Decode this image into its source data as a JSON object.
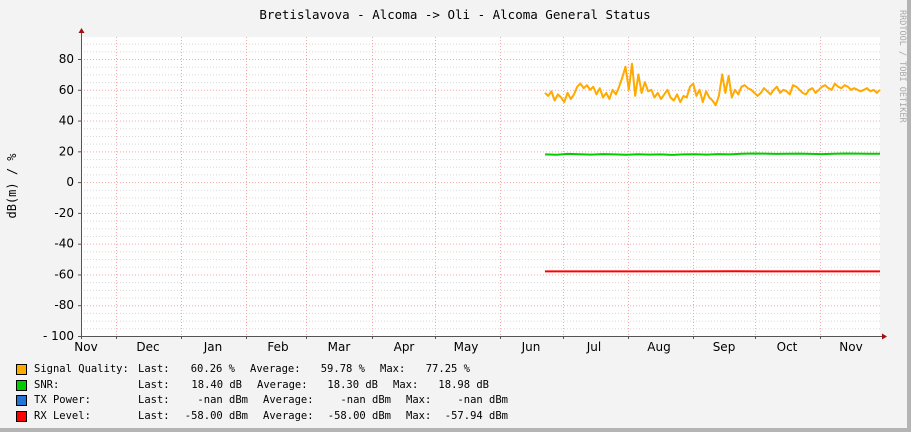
{
  "chart_data": {
    "type": "line",
    "title": "Bretislavova - Alcoma -> Oli - Alcoma General Status",
    "ylabel": "dB(m) / %",
    "xlabel": "",
    "watermark": "RRDTOOL / TOBI OETIKER",
    "ylim": [
      -100,
      95
    ],
    "yticks": [
      80,
      60,
      40,
      20,
      0,
      -20,
      -40,
      -60,
      -80,
      -100
    ],
    "ytick_labels": [
      "80",
      "60",
      "40",
      "20",
      "0",
      "-20",
      "-40",
      "-60",
      "-80",
      "- 100"
    ],
    "y_minor_step": 5,
    "xtick_labels": [
      "Nov",
      "Dec",
      "Jan",
      "Feb",
      "Mar",
      "Apr",
      "May",
      "Jun",
      "Jul",
      "Aug",
      "Sep",
      "Oct",
      "Nov"
    ],
    "grid": true,
    "x_data_start": "Jun 10",
    "x_data_end": "Nov 16",
    "series": [
      {
        "name": "Signal Quality",
        "color": "#ffaa00",
        "values": [
          58,
          56,
          59,
          53,
          57,
          55,
          52,
          58,
          54,
          57,
          62,
          64,
          61,
          63,
          60,
          62,
          57,
          61,
          55,
          58,
          54,
          60,
          57,
          62,
          68,
          75,
          60,
          77,
          56,
          70,
          58,
          65,
          59,
          60,
          55,
          58,
          54,
          57,
          60,
          55,
          53,
          57,
          52,
          56,
          55,
          62,
          64,
          56,
          60,
          52,
          59,
          55,
          53,
          50,
          56,
          70,
          58,
          69,
          55,
          60,
          57,
          62,
          63,
          61,
          60,
          58,
          56,
          58,
          61,
          59,
          57,
          60,
          62,
          58,
          60,
          59,
          57,
          63,
          62,
          60,
          58,
          57,
          60,
          61,
          58,
          60,
          62,
          63,
          61,
          60,
          64,
          62,
          61,
          63,
          62,
          60,
          61,
          60,
          59,
          60,
          61,
          59,
          60,
          58,
          60
        ]
      },
      {
        "name": "SNR",
        "color": "#00cc00",
        "values": [
          18.0,
          17.8,
          18.3,
          18.1,
          17.9,
          18.2,
          18.0,
          17.8,
          18.1,
          17.9,
          18.0,
          17.7,
          18.0,
          18.1,
          17.9,
          18.2,
          18.0,
          18.4,
          18.6,
          18.5,
          18.3,
          18.4,
          18.5,
          18.3,
          18.2,
          18.4,
          18.6,
          18.5,
          18.4,
          18.4
        ]
      },
      {
        "name": "TX Power",
        "color": "#2274d6",
        "values": []
      },
      {
        "name": "RX Level",
        "color": "#ff0000",
        "values": [
          -58,
          -58,
          -58,
          -58,
          -57.94,
          -58,
          -58,
          -58
        ]
      }
    ]
  },
  "legend": [
    {
      "label": "Signal Quality:",
      "color": "#ffaa00",
      "last_label": "Last:",
      "last": "60.26 %",
      "avg_label": "Average:",
      "avg": "59.78 %",
      "max_label": "Max:",
      "max": "77.25 %"
    },
    {
      "label": "SNR:",
      "color": "#00cc00",
      "last_label": "Last:",
      "last": "18.40 dB",
      "avg_label": "Average:",
      "avg": "18.30 dB",
      "max_label": "Max:",
      "max": "18.98 dB"
    },
    {
      "label": "TX Power:",
      "color": "#2274d6",
      "last_label": "Last:",
      "last": "-nan dBm",
      "avg_label": "Average:",
      "avg": "-nan dBm",
      "max_label": "Max:",
      "max": "-nan dBm"
    },
    {
      "label": "RX Level:",
      "color": "#ff0000",
      "last_label": "Last:",
      "last": "-58.00 dBm",
      "avg_label": "Average:",
      "avg": "-58.00 dBm",
      "max_label": "Max:",
      "max": "-57.94 dBm"
    }
  ]
}
